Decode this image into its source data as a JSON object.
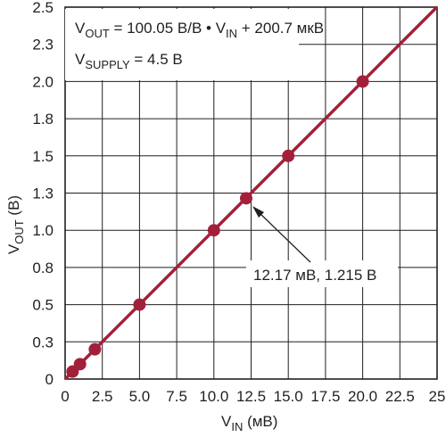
{
  "chart_data": {
    "type": "line",
    "xlim": [
      0,
      25
    ],
    "ylim": [
      0,
      2.5
    ],
    "x_ticks": [
      "0",
      "2.5",
      "5.0",
      "7.5",
      "10.0",
      "12.5",
      "15.0",
      "17.5",
      "20.0",
      "22.5",
      "25"
    ],
    "y_ticks": [
      "0",
      "0.3",
      "0.5",
      "0.8",
      "1.0",
      "1.3",
      "1.5",
      "1.8",
      "2.0",
      "2.3",
      "2.5"
    ],
    "x_gridlines": [
      0,
      2.5,
      5,
      7.5,
      10,
      12.5,
      15,
      17.5,
      20,
      22.5,
      25
    ],
    "y_gridlines": [
      0,
      0.25,
      0.5,
      0.75,
      1.0,
      1.25,
      1.5,
      1.75,
      2.0,
      2.25,
      2.5
    ],
    "xlabel": {
      "main": "V",
      "sub": "IN",
      "unit": " (мВ)"
    },
    "ylabel": {
      "main": "V",
      "sub": "OUT",
      "unit": " (В)"
    },
    "grid": true,
    "series": [
      {
        "line": {
          "x": [
            0,
            25
          ],
          "y": [
            0.0002,
            2.5015
          ]
        },
        "points": {
          "x": [
            0.5,
            1.0,
            2.0,
            5.0,
            10.0,
            12.17,
            15.0,
            20.0
          ],
          "y": [
            0.05,
            0.1,
            0.2,
            0.5,
            1.0,
            1.215,
            1.5,
            2.0
          ]
        }
      }
    ],
    "annotations": {
      "equation": {
        "a": "V",
        "a_sub": "OUT",
        "b": " = 100.05 В/В • V",
        "b_sub": "IN",
        "c": " + 200.7 мкВ"
      },
      "supply": {
        "a": "V",
        "a_sub": "SUPPLY",
        "b": " = 4.5 В"
      },
      "callout": {
        "text": "12.17 мВ, 1.215 В",
        "point_x": 12.17,
        "point_y": 1.215
      }
    },
    "colors": {
      "series": "#a3203a",
      "grid": "#231f20",
      "text": "#231f20"
    }
  }
}
